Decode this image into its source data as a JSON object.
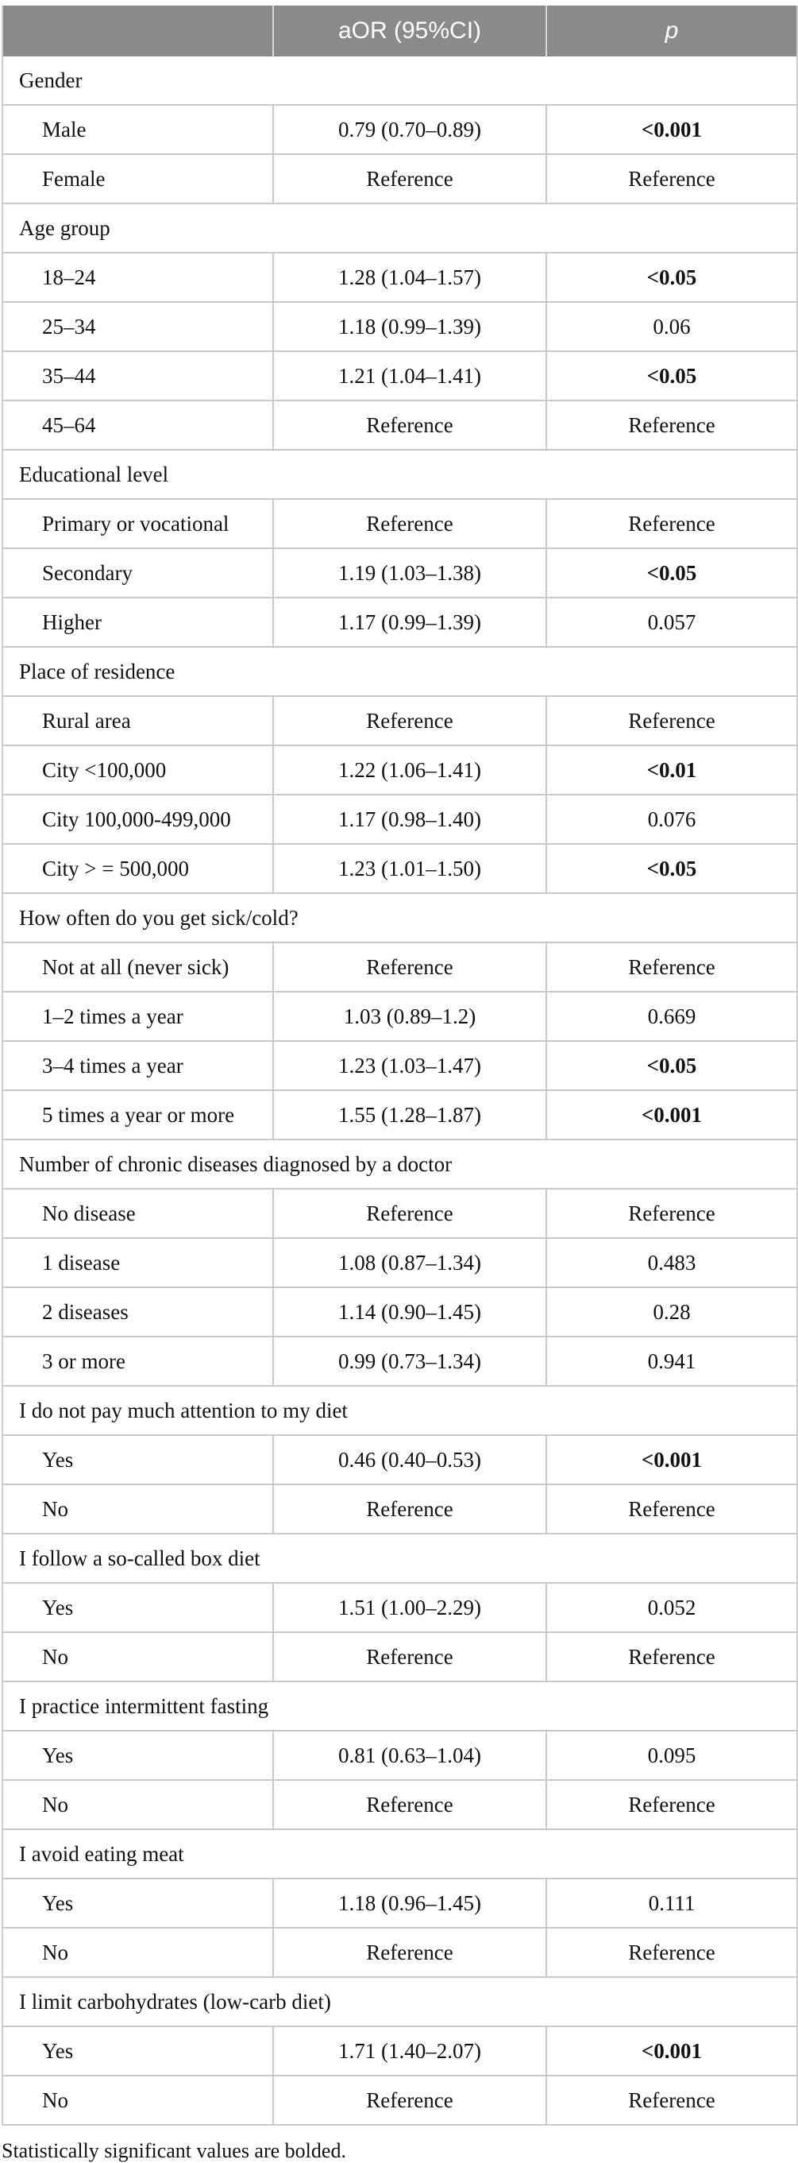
{
  "header": {
    "stub_label": "",
    "aor_label": "aOR (95%CI)",
    "p_label": "p"
  },
  "footnote": "Statistically significant values are bolded.",
  "colors": {
    "header_bg": "#8a8a8a",
    "header_text": "#ffffff",
    "border": "#c9c9c9",
    "body_text": "#111111"
  },
  "sections": [
    {
      "label": "Gender",
      "rows": [
        {
          "label": "Male",
          "aor": "0.79 (0.70–0.89)",
          "p": "<0.001",
          "bold": true
        },
        {
          "label": "Female",
          "aor": "Reference",
          "p": "Reference",
          "bold": false
        }
      ]
    },
    {
      "label": "Age group",
      "rows": [
        {
          "label": "18–24",
          "aor": "1.28 (1.04–1.57)",
          "p": "<0.05",
          "bold": true
        },
        {
          "label": "25–34",
          "aor": "1.18 (0.99–1.39)",
          "p": "0.06",
          "bold": false
        },
        {
          "label": "35–44",
          "aor": "1.21 (1.04–1.41)",
          "p": "<0.05",
          "bold": true
        },
        {
          "label": "45–64",
          "aor": "Reference",
          "p": "Reference",
          "bold": false
        }
      ]
    },
    {
      "label": "Educational level",
      "rows": [
        {
          "label": "Primary or vocational",
          "aor": "Reference",
          "p": "Reference",
          "bold": false
        },
        {
          "label": "Secondary",
          "aor": "1.19 (1.03–1.38)",
          "p": "<0.05",
          "bold": true
        },
        {
          "label": "Higher",
          "aor": "1.17 (0.99–1.39)",
          "p": "0.057",
          "bold": false
        }
      ]
    },
    {
      "label": "Place of residence",
      "rows": [
        {
          "label": "Rural area",
          "aor": "Reference",
          "p": "Reference",
          "bold": false
        },
        {
          "label": "City <100,000",
          "aor": "1.22 (1.06–1.41)",
          "p": "<0.01",
          "bold": true
        },
        {
          "label": "City 100,000-499,000",
          "aor": "1.17 (0.98–1.40)",
          "p": "0.076",
          "bold": false
        },
        {
          "label": "City > = 500,000",
          "aor": "1.23 (1.01–1.50)",
          "p": "<0.05",
          "bold": true
        }
      ]
    },
    {
      "label": "How often do you get sick/cold?",
      "rows": [
        {
          "label": "Not at all (never sick)",
          "aor": "Reference",
          "p": "Reference",
          "bold": false
        },
        {
          "label": "1–2 times a year",
          "aor": "1.03 (0.89–1.2)",
          "p": "0.669",
          "bold": false
        },
        {
          "label": "3–4 times a year",
          "aor": "1.23 (1.03–1.47)",
          "p": "<0.05",
          "bold": true
        },
        {
          "label": "5 times a year or more",
          "aor": "1.55 (1.28–1.87)",
          "p": "<0.001",
          "bold": true
        }
      ]
    },
    {
      "label": "Number of chronic diseases diagnosed by a doctor",
      "rows": [
        {
          "label": "No disease",
          "aor": "Reference",
          "p": "Reference",
          "bold": false
        },
        {
          "label": "1 disease",
          "aor": "1.08 (0.87–1.34)",
          "p": "0.483",
          "bold": false
        },
        {
          "label": "2 diseases",
          "aor": "1.14 (0.90–1.45)",
          "p": "0.28",
          "bold": false
        },
        {
          "label": "3 or more",
          "aor": "0.99 (0.73–1.34)",
          "p": "0.941",
          "bold": false
        }
      ]
    },
    {
      "label": "I do not pay much attention to my diet",
      "rows": [
        {
          "label": "Yes",
          "aor": "0.46 (0.40–0.53)",
          "p": "<0.001",
          "bold": true
        },
        {
          "label": "No",
          "aor": "Reference",
          "p": "Reference",
          "bold": false
        }
      ]
    },
    {
      "label": "I follow a so-called box diet",
      "rows": [
        {
          "label": "Yes",
          "aor": "1.51 (1.00–2.29)",
          "p": "0.052",
          "bold": false
        },
        {
          "label": "No",
          "aor": "Reference",
          "p": "Reference",
          "bold": false
        }
      ]
    },
    {
      "label": "I practice intermittent fasting",
      "rows": [
        {
          "label": "Yes",
          "aor": "0.81 (0.63–1.04)",
          "p": "0.095",
          "bold": false
        },
        {
          "label": "No",
          "aor": "Reference",
          "p": "Reference",
          "bold": false
        }
      ]
    },
    {
      "label": "I avoid eating meat",
      "rows": [
        {
          "label": "Yes",
          "aor": "1.18 (0.96–1.45)",
          "p": "0.111",
          "bold": false
        },
        {
          "label": "No",
          "aor": "Reference",
          "p": "Reference",
          "bold": false
        }
      ]
    },
    {
      "label": "I limit carbohydrates (low-carb diet)",
      "rows": [
        {
          "label": "Yes",
          "aor": "1.71 (1.40–2.07)",
          "p": "<0.001",
          "bold": true
        },
        {
          "label": "No",
          "aor": "Reference",
          "p": "Reference",
          "bold": false
        }
      ]
    }
  ]
}
